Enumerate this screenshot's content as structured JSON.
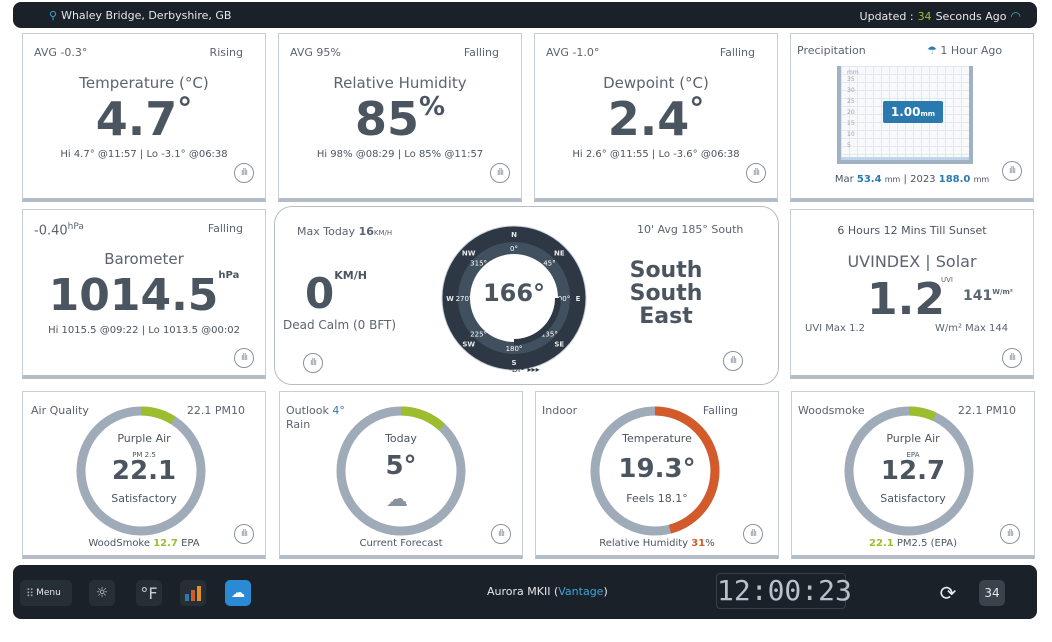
{
  "topbar": {
    "location": "Whaley Bridge, Derbyshire, GB",
    "updated_prefix": "Updated :",
    "updated_value": "34",
    "updated_suffix": "Seconds Ago"
  },
  "temperature": {
    "avg": "AVG -0.3°",
    "trend": "Rising",
    "title": "Temperature (°C)",
    "value": "4.7",
    "unit": "°",
    "hilo": "Hi 4.7° @11:57 | Lo -3.1° @06:38"
  },
  "humidity": {
    "avg": "AVG 95%",
    "trend": "Falling",
    "title": "Relative Humidity",
    "value": "85",
    "unit": "%",
    "hilo": "Hi 98% @08:29 | Lo 85% @11:57"
  },
  "dewpoint": {
    "avg": "AVG -1.0°",
    "trend": "Falling",
    "title": "Dewpoint (°C)",
    "value": "2.4",
    "unit": "°",
    "hilo": "Hi 2.6° @11:55 | Lo -3.6° @06:38"
  },
  "precip": {
    "title": "Precipitation",
    "ago": "1 Hour Ago",
    "gauge_unit": "mm",
    "scale": [
      "35",
      "30",
      "25",
      "20",
      "15",
      "10",
      "5"
    ],
    "value_badge": "1.00",
    "badge_unit": "mm",
    "fill_fraction": 0.03,
    "mar_label": "Mar",
    "mar_value": "53.4",
    "mar_unit": "mm",
    "year_label": "2023",
    "year_value": "188.0",
    "year_unit": "mm"
  },
  "barometer": {
    "change": "-0.40",
    "change_unit": "hPa",
    "trend": "Falling",
    "title": "Barometer",
    "value": "1014.5",
    "unit": "hPa",
    "hilo": "Hi 1015.5 @09:22 | Lo 1013.5 @00:02"
  },
  "wind": {
    "max_label": "Max Today",
    "max_value": "16",
    "max_unit": "KM/H",
    "avg": "10' Avg 185° South",
    "speed": "0",
    "speed_unit": "KM/H",
    "desc": "Dead Calm (0 BFT)",
    "bearing": "166°",
    "direction_lines": [
      "South",
      "South",
      "East"
    ],
    "compass_points": [
      "N",
      "NE",
      "E",
      "SE",
      "S",
      "SW",
      "W",
      "NW"
    ],
    "degree_labels": [
      "0°",
      "45°",
      "90°",
      "135°",
      "180°",
      "225°",
      "270°",
      "315°"
    ],
    "compass_bottom": "-Dl• ▸▸▸"
  },
  "uv": {
    "sunset": "6 Hours 12 Mins Till Sunset",
    "title": "UVINDEX | Solar",
    "uvi_tag": "UVI",
    "uv_value": "1.2",
    "solar_value": "141",
    "solar_unit": "W/m²",
    "uvi_max": "UVI Max 1.2",
    "solar_max": "W/m² Max 144"
  },
  "air": {
    "label": "Air Quality",
    "pm10": "22.1 PM10",
    "level": "Purple Air",
    "pm_tag": "PM 2.5",
    "value": "22.1",
    "status": "Satisfactory",
    "footer_prefix": "WoodSmoke",
    "footer_value": "12.7",
    "footer_suffix": "EPA",
    "arc_fraction": 0.09
  },
  "outlook": {
    "label": "Outlook",
    "temp": "4°",
    "sub": "Rain",
    "day": "Today",
    "value": "5°",
    "footer": "Current Forecast",
    "arc_fraction": 0.12,
    "icon": "cloud-rain-icon"
  },
  "indoor": {
    "label": "Indoor",
    "trend": "Falling",
    "title": "Temperature",
    "value": "19.3°",
    "feels": "Feels 18.1°",
    "footer_prefix": "Relative Humidity",
    "footer_value": "31",
    "footer_unit": "%",
    "arc_fraction": 0.46
  },
  "woodsmoke": {
    "label": "Woodsmoke",
    "pm10": "22.1 PM10",
    "level": "Purple Air",
    "tag": "EPA",
    "value": "12.7",
    "status": "Satisfactory",
    "footer_value": "22.1",
    "footer_suffix": "PM2.5 (EPA)",
    "arc_fraction": 0.07
  },
  "bottombar": {
    "menu": "Menu",
    "units": "°F",
    "station_name": "Aurora MKII",
    "station_model": "Vantage",
    "time": "12:00:23",
    "calendar_day": "34"
  },
  "colors": {
    "green": "#9bbd2e",
    "orange": "#d35a2a",
    "blue": "#2a7ab0",
    "ring": "#9fabb9"
  }
}
